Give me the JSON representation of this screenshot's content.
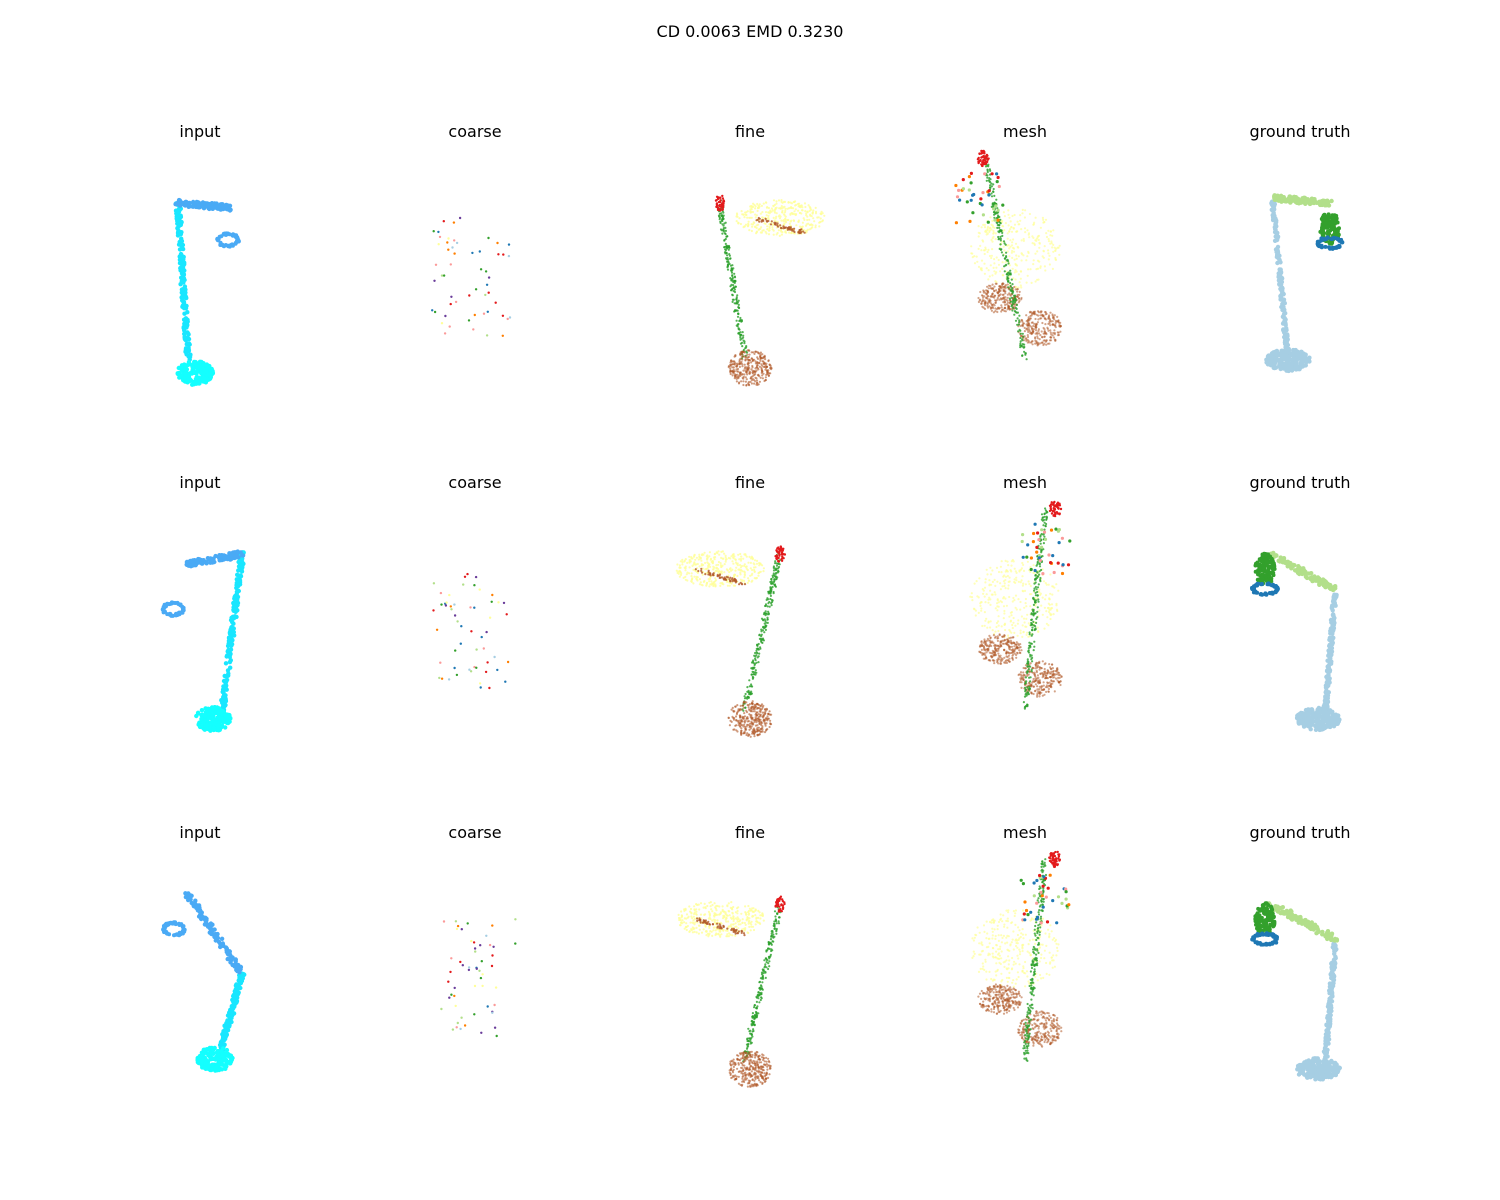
{
  "figure": {
    "title": "CD 0.0063  EMD 0.3230"
  },
  "rows": [
    {
      "panels": [
        {
          "title": "input"
        },
        {
          "title": "coarse"
        },
        {
          "title": "fine"
        },
        {
          "title": "mesh"
        },
        {
          "title": "ground truth"
        }
      ]
    },
    {
      "panels": [
        {
          "title": "input"
        },
        {
          "title": "coarse"
        },
        {
          "title": "fine"
        },
        {
          "title": "mesh"
        },
        {
          "title": "ground truth"
        }
      ]
    },
    {
      "panels": [
        {
          "title": "input"
        },
        {
          "title": "coarse"
        },
        {
          "title": "fine"
        },
        {
          "title": "mesh"
        },
        {
          "title": "ground truth"
        }
      ]
    }
  ],
  "colors": {
    "input_pole": "#19e6ff",
    "input_arm": "#4aaaf5",
    "input_base": "#14ffff",
    "fine_pole": "#2ca02c",
    "fine_shade": "#ffff99",
    "fine_shade_edge": "#b15928",
    "fine_base": "#b15928",
    "fine_joint": "#e31a1c",
    "gt_pole": "#a6cee3",
    "gt_arm": "#b2df8a",
    "gt_shade": "#33a02c",
    "gt_joint": "#1f78b4"
  }
}
